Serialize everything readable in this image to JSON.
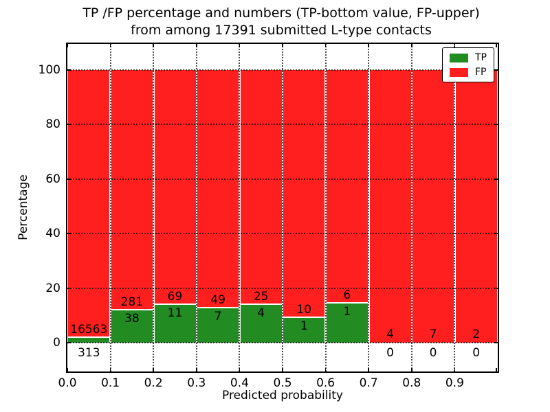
{
  "title": {
    "line1": "TP /FP percentage and numbers (TP-bottom value, FP-upper)",
    "line2": "from among 17391 submitted L-type contacts"
  },
  "chart_data": {
    "type": "bar",
    "stacked": true,
    "orientation": "vertical",
    "title": "TP /FP percentage and numbers (TP-bottom value, FP-upper) from among 17391 submitted L-type contacts",
    "xlabel": "Predicted probability",
    "ylabel": "Percentage",
    "xlim": [
      0.0,
      1.0
    ],
    "ylim": [
      -11,
      110
    ],
    "x_ticks": [
      "0.0",
      "0.1",
      "0.2",
      "0.3",
      "0.4",
      "0.5",
      "0.6",
      "0.7",
      "0.8",
      "0.9"
    ],
    "y_ticks": [
      0,
      20,
      40,
      60,
      80,
      100
    ],
    "grid": "dotted-both-axes-over-bars",
    "legend_position": "upper-right",
    "total_contacts": 17391,
    "legend": [
      {
        "label": "TP",
        "color": "#228b22"
      },
      {
        "label": "FP",
        "color": "#ff1f1f"
      }
    ],
    "colors": {
      "tp": "#228b22",
      "fp": "#ff1f1f"
    },
    "bins": [
      {
        "range": "0.0-0.1",
        "tp": 313,
        "fp": 16563,
        "tp_pct": 1.9
      },
      {
        "range": "0.1-0.2",
        "tp": 38,
        "fp": 281,
        "tp_pct": 11.9
      },
      {
        "range": "0.2-0.3",
        "tp": 11,
        "fp": 69,
        "tp_pct": 13.8
      },
      {
        "range": "0.3-0.4",
        "tp": 7,
        "fp": 49,
        "tp_pct": 12.5
      },
      {
        "range": "0.4-0.5",
        "tp": 4,
        "fp": 25,
        "tp_pct": 13.8
      },
      {
        "range": "0.5-0.6",
        "tp": 1,
        "fp": 10,
        "tp_pct": 9.1
      },
      {
        "range": "0.6-0.7",
        "tp": 1,
        "fp": 6,
        "tp_pct": 14.3
      },
      {
        "range": "0.7-0.8",
        "tp": 0,
        "fp": 4,
        "tp_pct": 0
      },
      {
        "range": "0.8-0.9",
        "tp": 0,
        "fp": 7,
        "tp_pct": 0
      },
      {
        "range": "0.9-1.0",
        "tp": 0,
        "fp": 2,
        "tp_pct": 0
      }
    ]
  }
}
